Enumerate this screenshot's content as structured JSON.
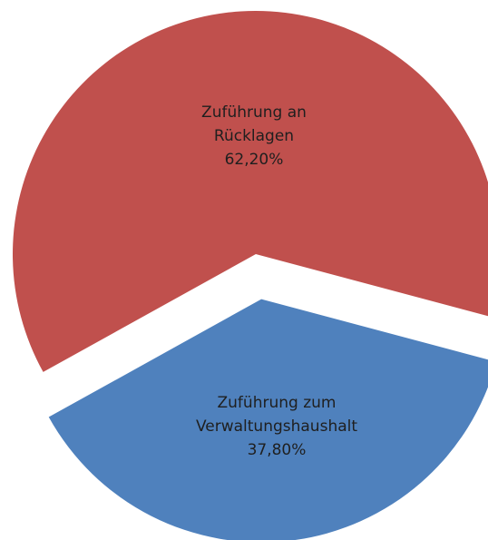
{
  "chart_data": {
    "type": "pie",
    "categories": [
      "Zuführung an Rücklagen",
      "Zuführung zum Verwaltungshaushalt"
    ],
    "values": [
      62.2,
      37.8
    ],
    "value_labels": [
      "62,20%",
      "37,80%"
    ],
    "colors": [
      "#c0504d",
      "#4f81bd"
    ]
  }
}
